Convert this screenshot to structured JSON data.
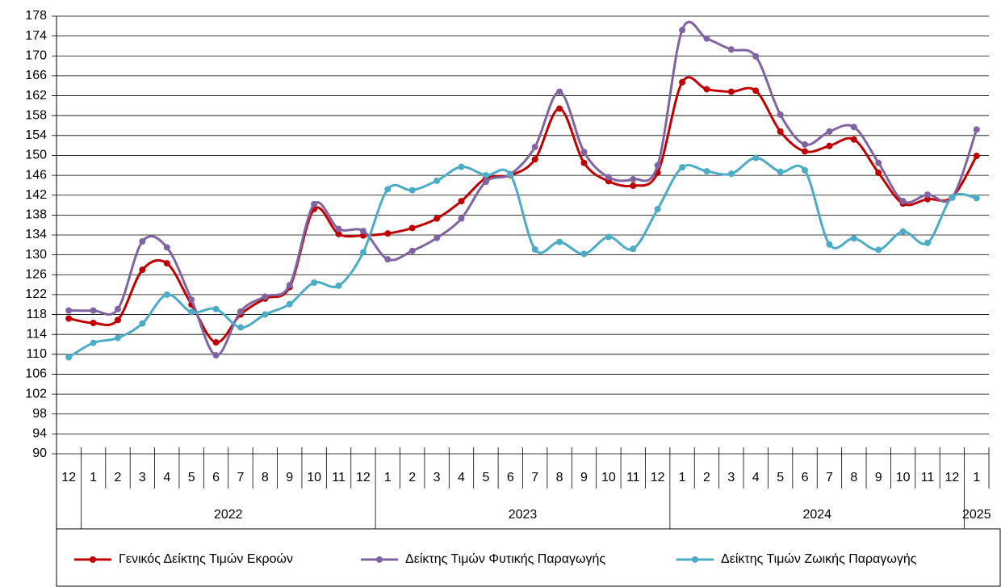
{
  "chart_data": {
    "type": "line",
    "categories": [
      "12",
      "1",
      "2",
      "3",
      "4",
      "5",
      "6",
      "7",
      "8",
      "9",
      "10",
      "11",
      "12",
      "1",
      "2",
      "3",
      "4",
      "5",
      "6",
      "7",
      "8",
      "9",
      "10",
      "11",
      "12",
      "1",
      "2",
      "3",
      "4",
      "5",
      "6",
      "7",
      "8",
      "9",
      "10",
      "11",
      "12",
      "1"
    ],
    "x_groups": [
      {
        "label": "2022",
        "first": 1,
        "last": 12
      },
      {
        "label": "2023",
        "first": 13,
        "last": 24
      },
      {
        "label": "2024",
        "first": 25,
        "last": 36
      },
      {
        "label": "2025",
        "first": 37,
        "last": 37
      }
    ],
    "series": [
      {
        "name": "Γενικός Δείκτης Τιμών Εκροών",
        "color": "#c00000",
        "values": [
          117.2,
          116.3,
          116.9,
          127,
          128.3,
          120,
          112.4,
          118,
          121.2,
          123.5,
          139.2,
          134.2,
          133.9,
          134.3,
          135.4,
          137.3,
          140.8,
          145.4,
          146,
          149.2,
          159.4,
          148.5,
          144.8,
          143.9,
          146.5,
          164.7,
          163.3,
          162.8,
          163,
          154.8,
          150.8,
          151.9,
          153.2,
          146.5,
          140.3,
          141.2,
          141.6,
          149.9
        ]
      },
      {
        "name": "Δείκτης Τιμών Φυτικής Παραγωγής",
        "color": "#8064a2",
        "values": [
          118.8,
          118.8,
          119.1,
          132.7,
          131.5,
          121,
          109.8,
          118.6,
          121.6,
          123.9,
          140.2,
          135.2,
          134.8,
          129.1,
          130.8,
          133.4,
          137.3,
          144.7,
          146.2,
          151.7,
          162.8,
          150.7,
          145.6,
          145.2,
          148,
          175.2,
          173.5,
          171.3,
          169.9,
          158.2,
          152.2,
          154.8,
          155.7,
          148.5,
          140.8,
          142.1,
          141.5,
          155.2
        ]
      },
      {
        "name": "Δείκτης Τιμών Ζωικής Παραγωγής",
        "color": "#4bacc6",
        "values": [
          109.4,
          112.3,
          113.3,
          116.2,
          122,
          118.5,
          119.1,
          115.4,
          118,
          120.1,
          124.4,
          123.8,
          130.5,
          143.2,
          143,
          144.9,
          147.7,
          146,
          146.1,
          131.1,
          132.6,
          130.2,
          133.6,
          131.2,
          139.2,
          147.6,
          146.8,
          146.3,
          149.5,
          146.7,
          147,
          132.1,
          133.3,
          131,
          134.7,
          132.4,
          141.6,
          141.4
        ]
      }
    ],
    "ylim": [
      90,
      178
    ],
    "yticks": [
      90,
      94,
      98,
      102,
      106,
      110,
      114,
      118,
      122,
      126,
      130,
      134,
      138,
      142,
      146,
      150,
      154,
      158,
      162,
      166,
      170,
      174,
      178
    ],
    "grid": true,
    "smooth": true,
    "markers": true,
    "legend": "bottom"
  }
}
